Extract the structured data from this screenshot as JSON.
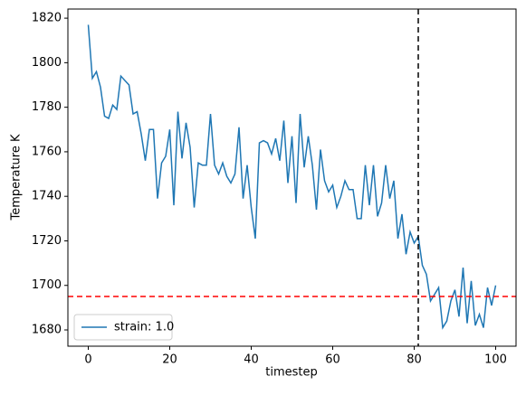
{
  "chart_data": {
    "type": "line",
    "xlabel": "timestep",
    "ylabel": "Temperature K",
    "x": [
      0,
      1,
      2,
      3,
      4,
      5,
      6,
      7,
      8,
      9,
      10,
      11,
      12,
      13,
      14,
      15,
      16,
      17,
      18,
      19,
      20,
      21,
      22,
      23,
      24,
      25,
      26,
      27,
      28,
      29,
      30,
      31,
      32,
      33,
      34,
      35,
      36,
      37,
      38,
      39,
      40,
      41,
      42,
      43,
      44,
      45,
      46,
      47,
      48,
      49,
      50,
      51,
      52,
      53,
      54,
      55,
      56,
      57,
      58,
      59,
      60,
      61,
      62,
      63,
      64,
      65,
      66,
      67,
      68,
      69,
      70,
      71,
      72,
      73,
      74,
      75,
      76,
      77,
      78,
      79,
      80,
      81,
      82,
      83,
      84,
      85,
      86,
      87,
      88,
      89,
      90,
      91,
      92,
      93,
      94,
      95,
      96,
      97,
      98,
      99,
      100
    ],
    "series": [
      {
        "name": "strain: 1.0",
        "color": "#1f77b4",
        "values": [
          1817,
          1793,
          1796,
          1789,
          1776,
          1775,
          1781,
          1779,
          1794,
          1792,
          1790,
          1777,
          1778,
          1768,
          1756,
          1770,
          1770,
          1739,
          1755,
          1758,
          1770,
          1736,
          1778,
          1757,
          1773,
          1762,
          1735,
          1755,
          1754,
          1754,
          1777,
          1754,
          1750,
          1755,
          1749,
          1746,
          1750,
          1771,
          1739,
          1754,
          1735,
          1721,
          1764,
          1765,
          1764,
          1759,
          1766,
          1756,
          1774,
          1746,
          1767,
          1737,
          1777,
          1753,
          1767,
          1754,
          1734,
          1761,
          1747,
          1742,
          1745,
          1735,
          1740,
          1747,
          1743,
          1743,
          1730,
          1730,
          1754,
          1736,
          1754,
          1731,
          1737,
          1754,
          1739,
          1747,
          1721,
          1732,
          1714,
          1724,
          1719,
          1722,
          1709,
          1705,
          1693,
          1696,
          1699,
          1681,
          1684,
          1693,
          1698,
          1686,
          1708,
          1683,
          1702,
          1682,
          1687,
          1681,
          1699,
          1691,
          1700
        ]
      }
    ],
    "hlines": [
      {
        "value": 1695,
        "color": "#ff0000"
      }
    ],
    "vlines": [
      {
        "value": 81,
        "color": "#000000"
      }
    ],
    "xlim": [
      -5,
      105
    ],
    "ylim": [
      1672.7,
      1824.1
    ],
    "xticks": [
      0,
      20,
      40,
      60,
      80,
      100
    ],
    "yticks": [
      1680,
      1700,
      1720,
      1740,
      1760,
      1780,
      1800,
      1820
    ],
    "legend": "lower left"
  }
}
